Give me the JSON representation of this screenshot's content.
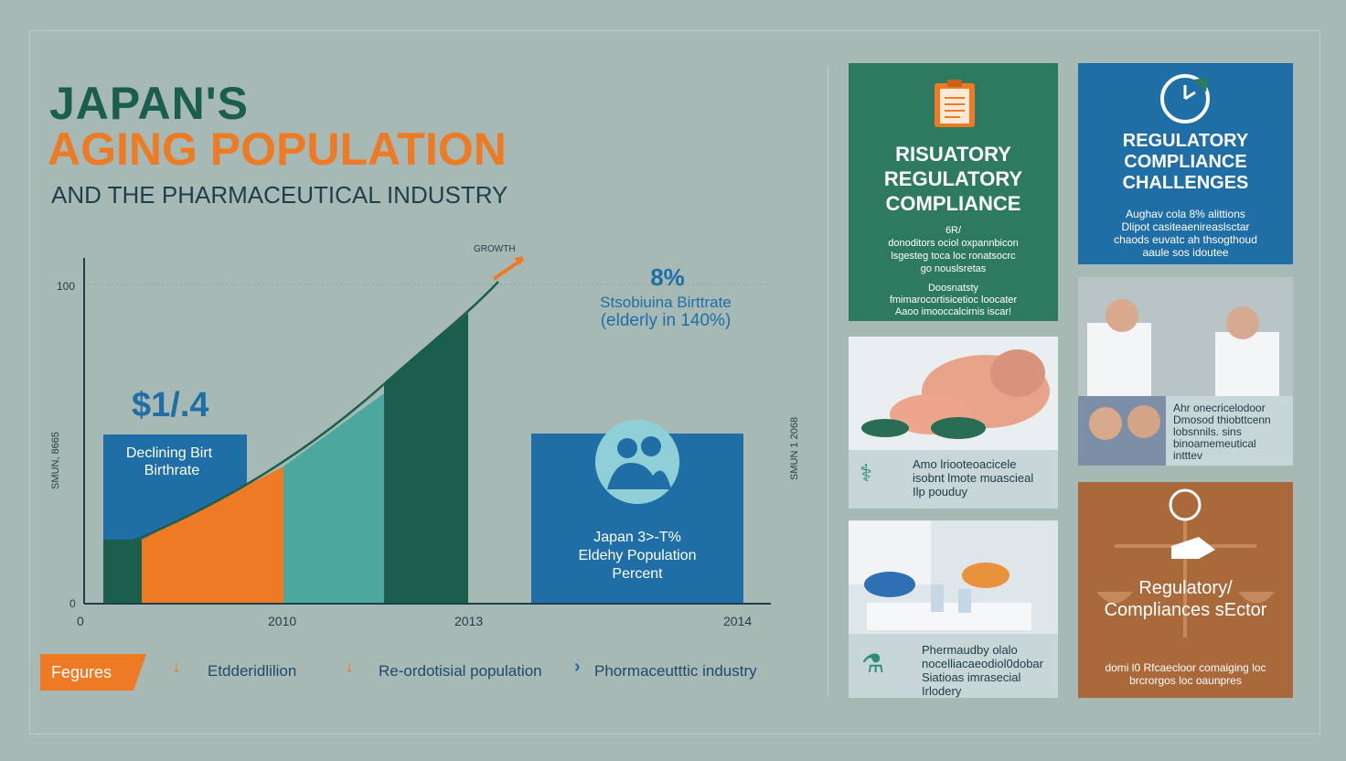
{
  "title": {
    "line1": "JAPAN'S",
    "line2": "AGING POPULATION",
    "line3": "AND THE PHARMACEUTICAL INDUSTRY"
  },
  "chart_data": {
    "type": "bar",
    "y_tick_top": "100",
    "y_tick_bottom": "0",
    "x_tick_labels": [
      "0",
      "2010",
      "2013",
      "2014"
    ],
    "left_axis_label": "SMUN, 8665",
    "right_axis_label": "SMUN 1 2068",
    "growth_label": "GROWTH",
    "annotation_value": "$1/.4",
    "left_box_label": "Declining Birt Birthrate",
    "stat_value": "8%",
    "stat_line1": "Stsobiuina Birttrate",
    "stat_line2": "(elderly in 140%)",
    "right_box_label": "Japan 3>-T% Eldehy Population Percent",
    "colors": {
      "dark_green": "#1c5e4c",
      "orange": "#ee7a24",
      "teal": "#4ca89e",
      "blue": "#1f6fa6"
    }
  },
  "legend": {
    "label": "Fegures",
    "items": [
      "Etdderidlilion",
      "Re-ordotisial population",
      "Phormaceutttic industry"
    ]
  },
  "cards": {
    "green": {
      "icon": "clipboard-icon",
      "title_lines": [
        "RISUATORY",
        "REGULATORY",
        "COMPLIANCE"
      ],
      "body": [
        "6R/",
        "donoditors ociol  oxpannbicon",
        "lsgesteg toca loc ronatsocrc",
        "go nouslsretas"
      ],
      "body2": [
        "Doosnatsty",
        "fmimarocortisicetioc loocater",
        "Aaoo imooccalcirnis iscar!"
      ]
    },
    "blue": {
      "icon": "clock-icon",
      "title_lines": [
        "REGULATORY",
        "COMPLIANCE",
        "CHALLENGES"
      ],
      "body": [
        "Aughav cola 8% alittions",
        "Dlipot casiteaenireaslsctar",
        "chaods euvatc ah thsogthoud",
        "aaule sos idoutee"
      ]
    },
    "pills": {
      "caption": [
        "Amo lriooteoacicele",
        "isobnt lmote muascieal",
        "Ilp pouduy"
      ]
    },
    "doctors": {
      "caption": [
        "Ahr onecricelodoor",
        "Dmosod thiobttcenn",
        "lobsnnils. sins",
        "binoamemeutical",
        "intttev"
      ]
    },
    "lab": {
      "caption": [
        "Phermaudby olalo",
        "nocelliacaeodiol0dobar",
        "Siatioas imrasecial",
        "Irlodery"
      ]
    },
    "brown": {
      "icon": "scales-icon",
      "title_lines": [
        "Regulatory/",
        "Compliances sEctor"
      ],
      "body": [
        "domi l0 Rfcaecloor comaiging loc",
        "brcrorgos loc oaunpres"
      ]
    }
  }
}
